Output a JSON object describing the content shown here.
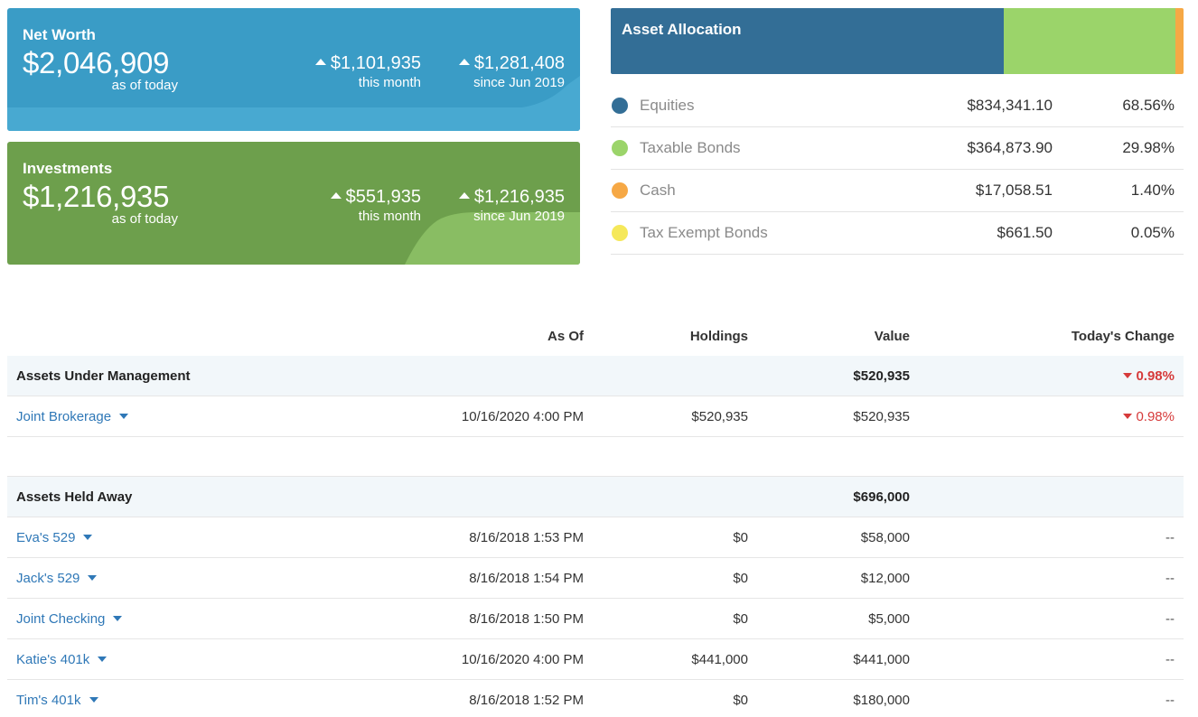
{
  "net_worth": {
    "title": "Net Worth",
    "amount": "$2,046,909",
    "as_of": "as of today",
    "month_change": "$1,101,935",
    "month_label": "this month",
    "since_change": "$1,281,408",
    "since_label": "since Jun 2019",
    "color": "#3a9cc6"
  },
  "investments": {
    "title": "Investments",
    "amount": "$1,216,935",
    "as_of": "as of today",
    "month_change": "$551,935",
    "month_label": "this month",
    "since_change": "$1,216,935",
    "since_label": "since Jun 2019",
    "color": "#6d9f4c"
  },
  "allocation": {
    "title": "Asset Allocation",
    "items": [
      {
        "name": "Equities",
        "amount": "$834,341.10",
        "percent": "68.56%",
        "share": 68.56,
        "color": "#336e96"
      },
      {
        "name": "Taxable Bonds",
        "amount": "$364,873.90",
        "percent": "29.98%",
        "share": 29.98,
        "color": "#9bd46a"
      },
      {
        "name": "Cash",
        "amount": "$17,058.51",
        "percent": "1.40%",
        "share": 1.4,
        "color": "#f6a845"
      },
      {
        "name": "Tax Exempt Bonds",
        "amount": "$661.50",
        "percent": "0.05%",
        "share": 0.05,
        "color": "#f5e85a"
      }
    ]
  },
  "accounts": {
    "headers": {
      "as_of": "As Of",
      "holdings": "Holdings",
      "value": "Value",
      "change": "Today's Change"
    },
    "aum": {
      "label": "Assets Under Management",
      "value": "$520,935",
      "change": "0.98%",
      "rows": [
        {
          "name": "Joint Brokerage",
          "as_of": "10/16/2020 4:00 PM",
          "holdings": "$520,935",
          "value": "$520,935",
          "change": "0.98%"
        }
      ]
    },
    "held_away": {
      "label": "Assets Held Away",
      "value": "$696,000",
      "rows": [
        {
          "name": "Eva's 529",
          "as_of": "8/16/2018 1:53 PM",
          "holdings": "$0",
          "value": "$58,000",
          "change": "--"
        },
        {
          "name": "Jack's 529",
          "as_of": "8/16/2018 1:54 PM",
          "holdings": "$0",
          "value": "$12,000",
          "change": "--"
        },
        {
          "name": "Joint Checking",
          "as_of": "8/16/2018 1:50 PM",
          "holdings": "$0",
          "value": "$5,000",
          "change": "--"
        },
        {
          "name": "Katie's 401k",
          "as_of": "10/16/2020 4:00 PM",
          "holdings": "$441,000",
          "value": "$441,000",
          "change": "--"
        },
        {
          "name": "Tim's 401k",
          "as_of": "8/16/2018 1:52 PM",
          "holdings": "$0",
          "value": "$180,000",
          "change": "--"
        }
      ]
    }
  }
}
